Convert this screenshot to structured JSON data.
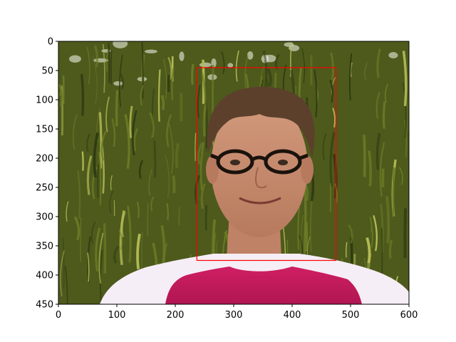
{
  "figure": {
    "xaxis": {
      "ticks": [
        0,
        100,
        200,
        300,
        400,
        500,
        600
      ],
      "limits": [
        0,
        600
      ]
    },
    "yaxis": {
      "ticks": [
        0,
        50,
        100,
        150,
        200,
        250,
        300,
        350,
        400,
        450
      ],
      "limits": [
        0,
        450
      ],
      "inverted": true
    },
    "image": {
      "subject": "portrait photo: man with round glasses and short brown hair, red/pink and white shirt, in front of a weeping willow tree",
      "colors": {
        "foliage_dark": "#2f3a12",
        "foliage_mid": "#6b7a25",
        "foliage_light": "#b6bb55",
        "sky": "#e8efe0",
        "skin": "#c98a6c",
        "hair": "#5a3f2c",
        "shirt_red": "#c2185b",
        "shirt_white": "#f4eef6"
      }
    },
    "bounding_box": {
      "label": "face-detection-box",
      "color": "#ff0000",
      "x_min": 237,
      "x_max": 475,
      "y_min": 45,
      "y_max": 375
    }
  }
}
